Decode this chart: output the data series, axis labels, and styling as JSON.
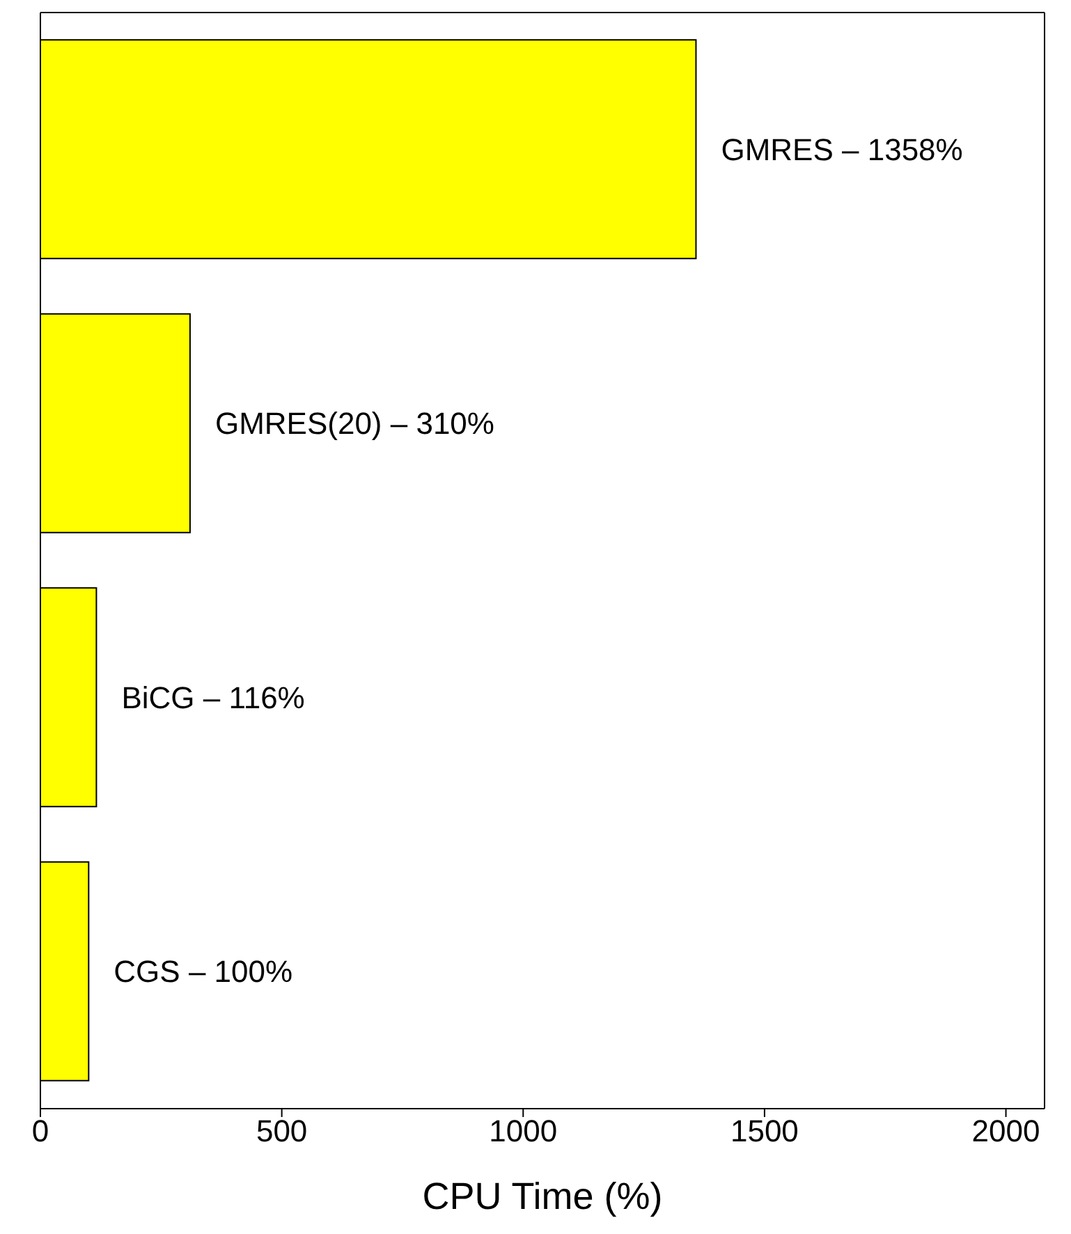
{
  "chart_data": {
    "type": "bar",
    "orientation": "horizontal",
    "xlabel": "CPU Time (%)",
    "categories": [
      null,
      null,
      null,
      null
    ],
    "values": [
      1358,
      310,
      116,
      100
    ],
    "annotations": [
      "GMRES – 1358%",
      "GMRES(20) – 310%",
      "BiCG – 116%",
      "CGS – 100%"
    ],
    "color": "#ffff00",
    "xlim": [
      0,
      2080
    ],
    "xticks": [
      0,
      500,
      1000,
      1500,
      2000
    ],
    "tick_labels": "x",
    "grid": false,
    "legend": false
  }
}
